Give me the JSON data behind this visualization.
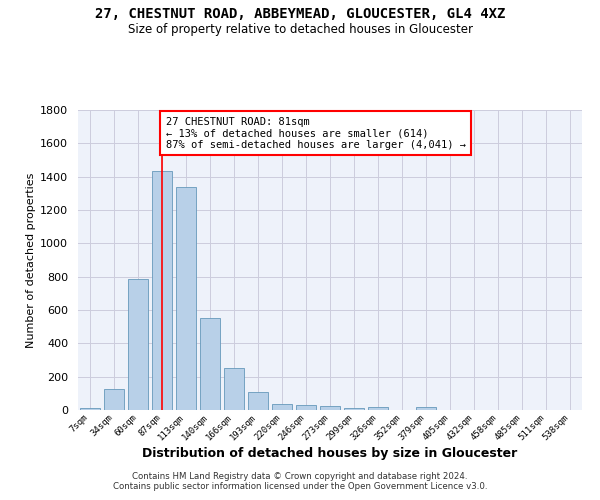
{
  "title": "27, CHESTNUT ROAD, ABBEYMEAD, GLOUCESTER, GL4 4XZ",
  "subtitle": "Size of property relative to detached houses in Gloucester",
  "xlabel": "Distribution of detached houses by size in Gloucester",
  "ylabel": "Number of detached properties",
  "bar_color": "#b8d0e8",
  "bar_edge_color": "#6699bb",
  "grid_color": "#ccccdd",
  "background_color": "#eef2fa",
  "bin_labels": [
    "7sqm",
    "34sqm",
    "60sqm",
    "87sqm",
    "113sqm",
    "140sqm",
    "166sqm",
    "193sqm",
    "220sqm",
    "246sqm",
    "273sqm",
    "299sqm",
    "326sqm",
    "352sqm",
    "379sqm",
    "405sqm",
    "432sqm",
    "458sqm",
    "485sqm",
    "511sqm",
    "538sqm"
  ],
  "bar_heights": [
    15,
    125,
    785,
    1435,
    1340,
    550,
    250,
    110,
    35,
    30,
    25,
    15,
    20,
    0,
    20,
    0,
    0,
    0,
    0,
    0,
    0
  ],
  "red_line_index": 3,
  "annotation_text": "27 CHESTNUT ROAD: 81sqm\n← 13% of detached houses are smaller (614)\n87% of semi-detached houses are larger (4,041) →",
  "annotation_box_color": "#ffffff",
  "annotation_border_color": "red",
  "ylim": [
    0,
    1800
  ],
  "yticks": [
    0,
    200,
    400,
    600,
    800,
    1000,
    1200,
    1400,
    1600,
    1800
  ],
  "footer_line1": "Contains HM Land Registry data © Crown copyright and database right 2024.",
  "footer_line2": "Contains public sector information licensed under the Open Government Licence v3.0."
}
